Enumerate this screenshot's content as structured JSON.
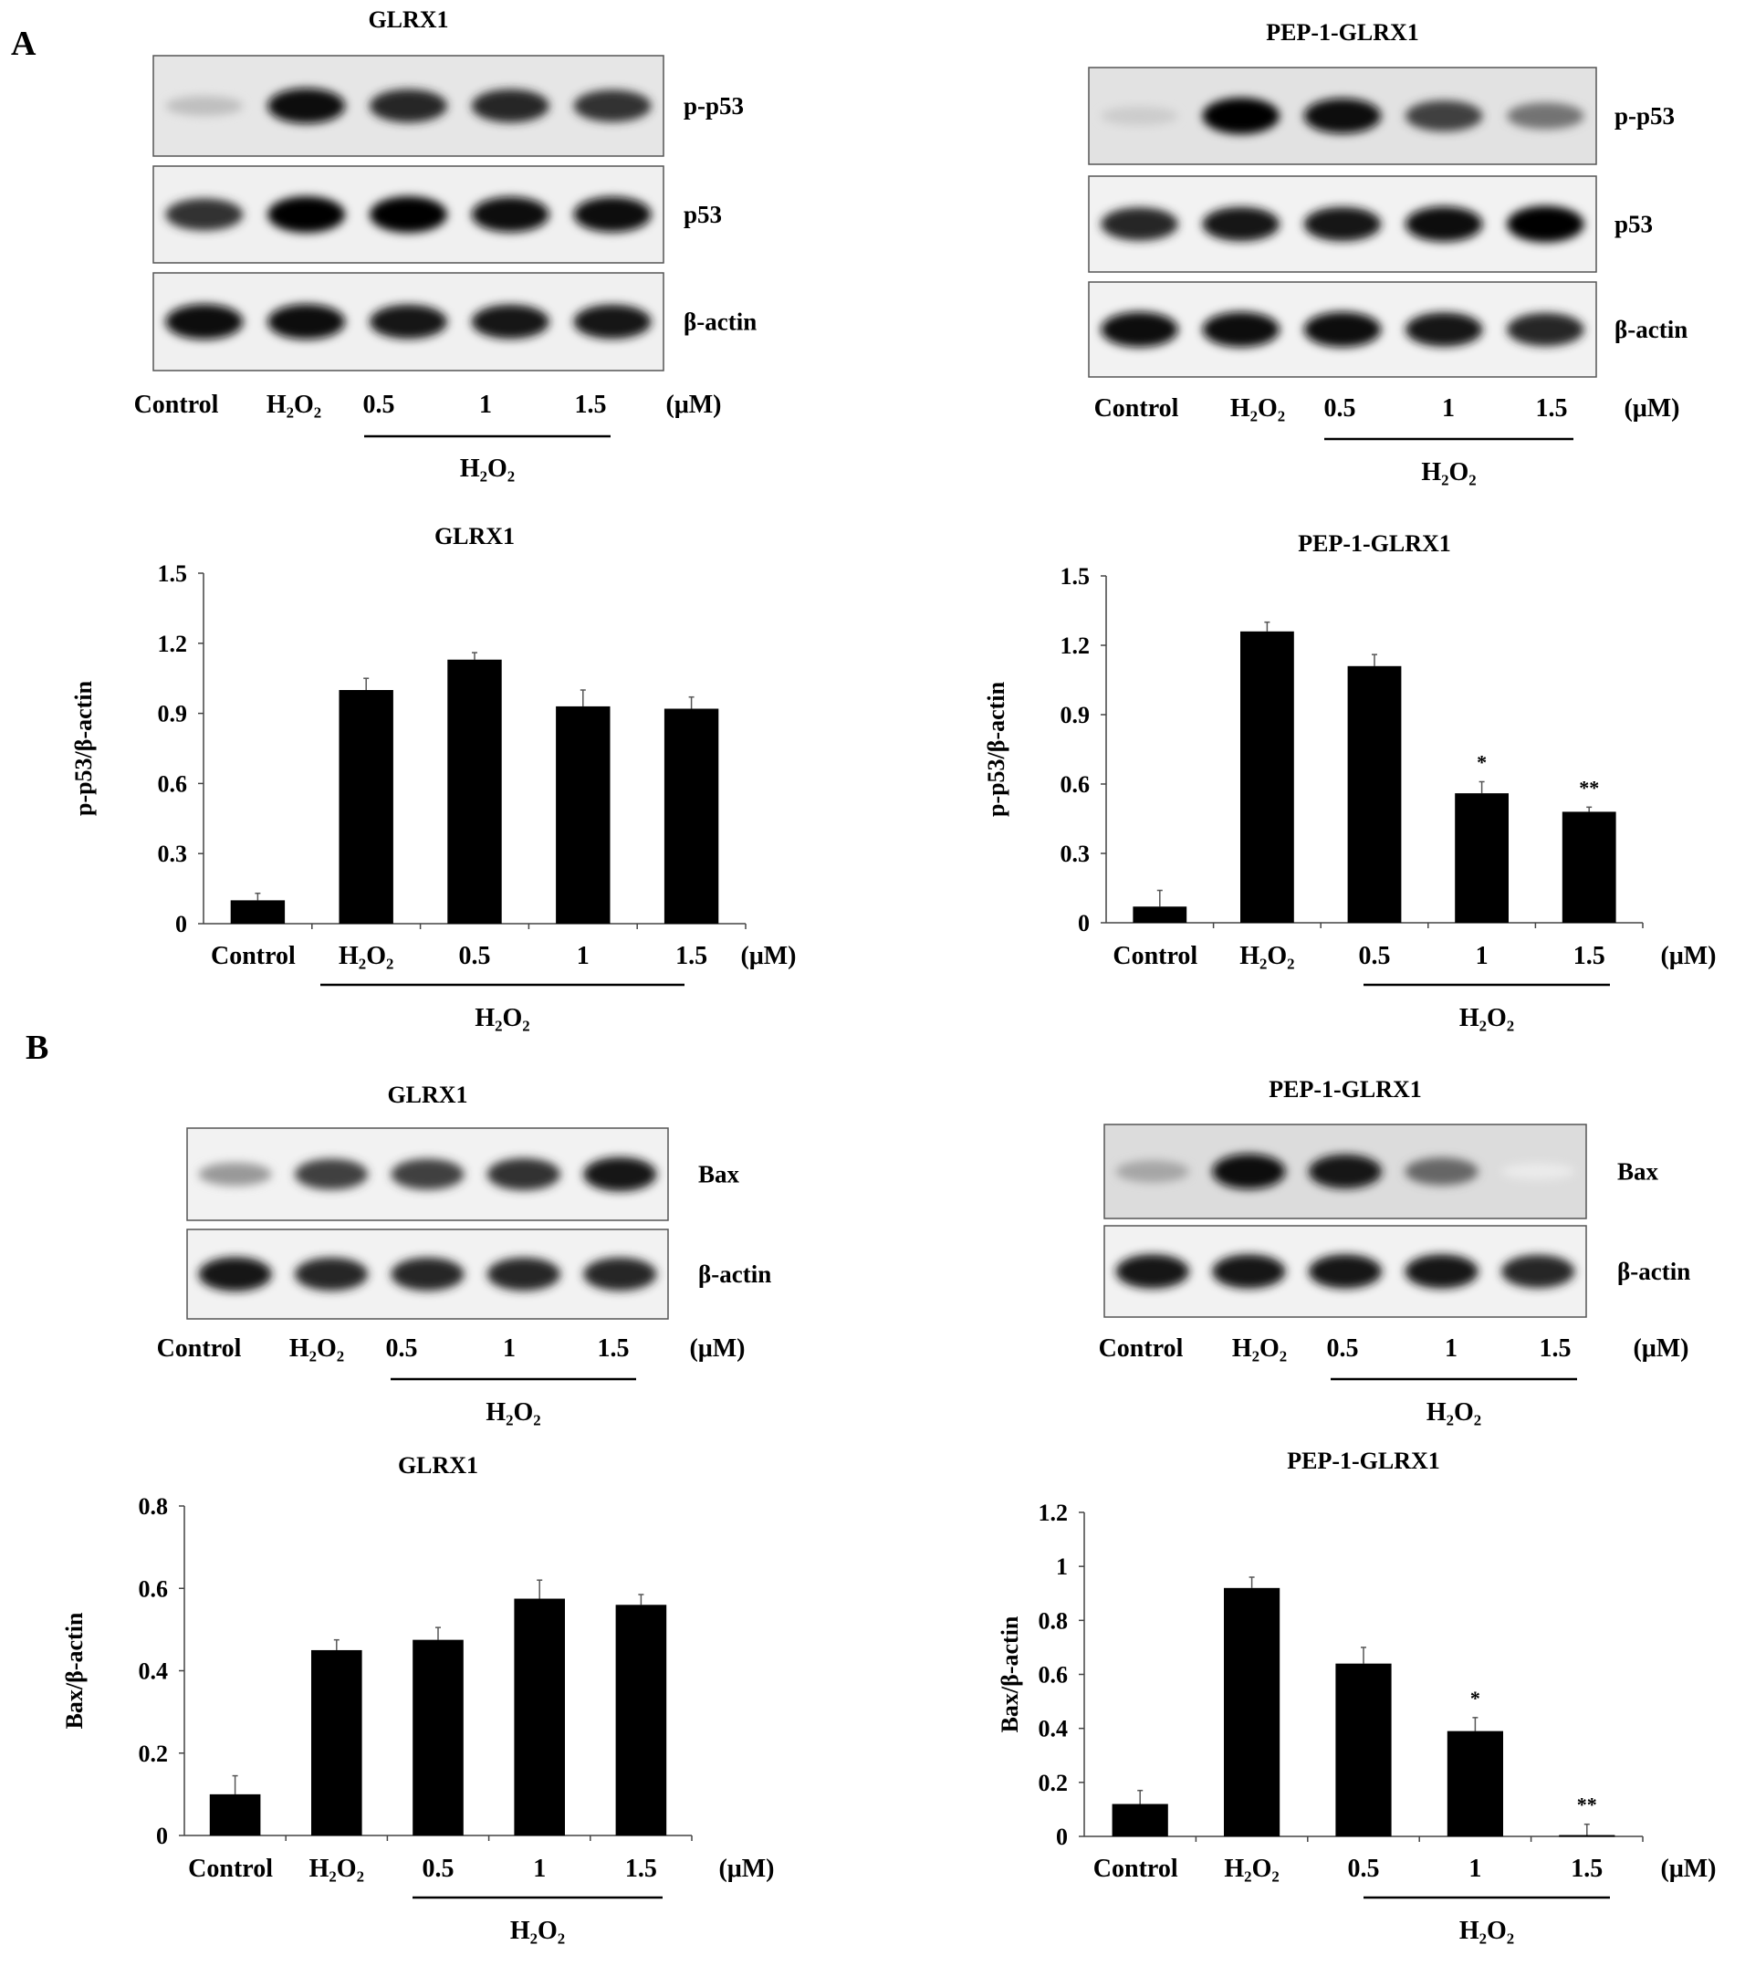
{
  "panels": {
    "A": "A",
    "B": "B"
  },
  "common": {
    "lanes": [
      "Control",
      "H₂O₂",
      "0.5",
      "1",
      "1.5"
    ],
    "unit": "(μM)",
    "treatment": "H₂O₂"
  },
  "blots": [
    {
      "title": "GLRX1",
      "rows": [
        {
          "label": "p-p53",
          "background": "#e6e6e6",
          "band_intensity": [
            0.25,
            0.95,
            0.85,
            0.85,
            0.8
          ]
        },
        {
          "label": "p53",
          "background": "#f0f0f0",
          "band_intensity": [
            0.8,
            1.0,
            1.0,
            0.95,
            0.95
          ]
        },
        {
          "label": "β-actin",
          "background": "#f0f0f0",
          "band_intensity": [
            0.95,
            0.95,
            0.9,
            0.9,
            0.9
          ]
        }
      ]
    },
    {
      "title": "PEP-1-GLRX1",
      "rows": [
        {
          "label": "p-p53",
          "background": "#e2e2e2",
          "band_intensity": [
            0.2,
            1.0,
            0.95,
            0.75,
            0.55
          ]
        },
        {
          "label": "p53",
          "background": "#f2f2f2",
          "band_intensity": [
            0.85,
            0.9,
            0.9,
            0.95,
            1.0
          ]
        },
        {
          "label": "β-actin",
          "background": "#f2f2f2",
          "band_intensity": [
            0.95,
            0.95,
            0.95,
            0.9,
            0.85
          ]
        }
      ]
    },
    {
      "title": "GLRX1",
      "rows": [
        {
          "label": "Bax",
          "background": "#f2f2f2",
          "band_intensity": [
            0.4,
            0.75,
            0.75,
            0.8,
            0.9
          ]
        },
        {
          "label": "β-actin",
          "background": "#f2f2f2",
          "band_intensity": [
            0.9,
            0.85,
            0.85,
            0.85,
            0.85
          ]
        }
      ]
    },
    {
      "title": "PEP-1-GLRX1",
      "rows": [
        {
          "label": "Bax",
          "background": "#dcdcdc",
          "band_intensity": [
            0.35,
            0.95,
            0.9,
            0.6,
            0.08
          ]
        },
        {
          "label": "β-actin",
          "background": "#f2f2f2",
          "band_intensity": [
            0.9,
            0.9,
            0.9,
            0.9,
            0.85
          ]
        }
      ]
    }
  ],
  "chart_data": [
    {
      "type": "bar",
      "title": "GLRX1",
      "ylabel": "p-p53/β-actin",
      "ylim": [
        0,
        1.5
      ],
      "yticks": [
        "0",
        "0.3",
        "0.6",
        "0.9",
        "1.2",
        "1.5"
      ],
      "categories": [
        "Control",
        "H₂O₂",
        "0.5",
        "1",
        "1.5"
      ],
      "values": [
        0.1,
        1.0,
        1.13,
        0.93,
        0.92
      ],
      "errors": [
        0.03,
        0.05,
        0.03,
        0.07,
        0.05
      ],
      "significance": [
        "",
        "",
        "",
        "",
        ""
      ]
    },
    {
      "type": "bar",
      "title": "PEP-1-GLRX1",
      "ylabel": "p-p53/β-actin",
      "ylim": [
        0,
        1.5
      ],
      "yticks": [
        "0",
        "0.3",
        "0.6",
        "0.9",
        "1.2",
        "1.5"
      ],
      "categories": [
        "Control",
        "H₂O₂",
        "0.5",
        "1",
        "1.5"
      ],
      "values": [
        0.07,
        1.26,
        1.11,
        0.56,
        0.48
      ],
      "errors": [
        0.07,
        0.04,
        0.05,
        0.05,
        0.02
      ],
      "significance": [
        "",
        "",
        "",
        "*",
        "**"
      ]
    },
    {
      "type": "bar",
      "title": "GLRX1",
      "ylabel": "Bax/β-actin",
      "ylim": [
        0,
        0.8
      ],
      "yticks": [
        "0",
        "0.2",
        "0.4",
        "0.6",
        "0.8"
      ],
      "categories": [
        "Control",
        "H₂O₂",
        "0.5",
        "1",
        "1.5"
      ],
      "values": [
        0.1,
        0.45,
        0.475,
        0.575,
        0.56
      ],
      "errors": [
        0.045,
        0.025,
        0.03,
        0.045,
        0.025
      ],
      "significance": [
        "",
        "",
        "",
        "",
        ""
      ]
    },
    {
      "type": "bar",
      "title": "PEP-1-GLRX1",
      "ylabel": "Bax/β-actin",
      "ylim": [
        0,
        1.2
      ],
      "yticks": [
        "0",
        "0.2",
        "0.4",
        "0.6",
        "0.8",
        "1",
        "1.2"
      ],
      "categories": [
        "Control",
        "H₂O₂",
        "0.5",
        "1",
        "1.5"
      ],
      "values": [
        0.12,
        0.92,
        0.64,
        0.39,
        0.005
      ],
      "errors": [
        0.05,
        0.04,
        0.06,
        0.05,
        0.04
      ],
      "significance": [
        "",
        "",
        "",
        "*",
        "**"
      ]
    }
  ]
}
